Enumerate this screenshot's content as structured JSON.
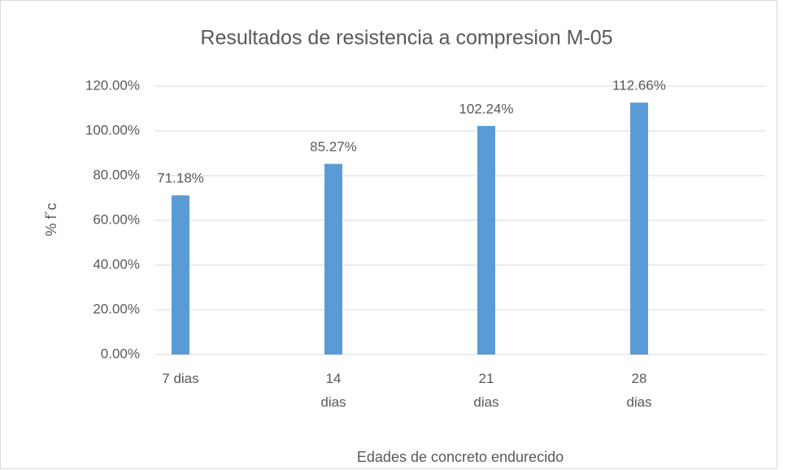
{
  "chart_data": {
    "type": "bar",
    "title": "Resultados de resistencia a compresion M-05",
    "x_label": "Edades de concreto endurecido",
    "y_label": "% f´c",
    "categories": [
      "7 dias",
      "14 dias",
      "21 dias",
      "28 dias"
    ],
    "values": [
      71.18,
      85.27,
      102.24,
      112.66
    ],
    "value_labels": [
      "71.18%",
      "85.27%",
      "102.24%",
      "112.66%"
    ],
    "color": "#5b9bd5",
    "ylim": [
      0,
      120
    ],
    "yticks": [
      {
        "value": 0,
        "label": "0.00%"
      },
      {
        "value": 20,
        "label": "20.00%"
      },
      {
        "value": 40,
        "label": "40.00%"
      },
      {
        "value": 60,
        "label": "60.00%"
      },
      {
        "value": 80,
        "label": "80.00%"
      },
      {
        "value": 100,
        "label": "100.00%"
      },
      {
        "value": 120,
        "label": "120.00%"
      }
    ],
    "grid": true
  }
}
